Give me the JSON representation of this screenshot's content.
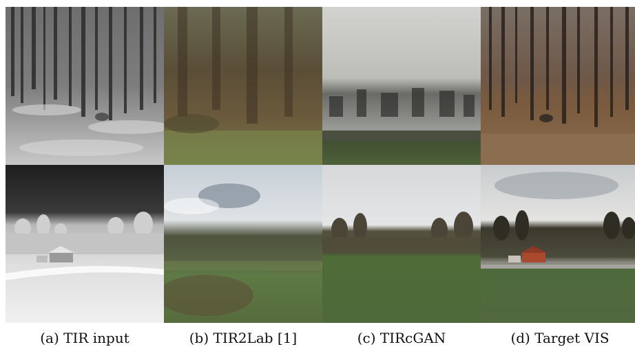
{
  "figure": {
    "columns": [
      {
        "caption": "(a) TIR input"
      },
      {
        "caption": "(b) TIR2Lab [1]"
      },
      {
        "caption": "(c) TIRcGAN"
      },
      {
        "caption": "(d) Target VIS"
      }
    ]
  }
}
